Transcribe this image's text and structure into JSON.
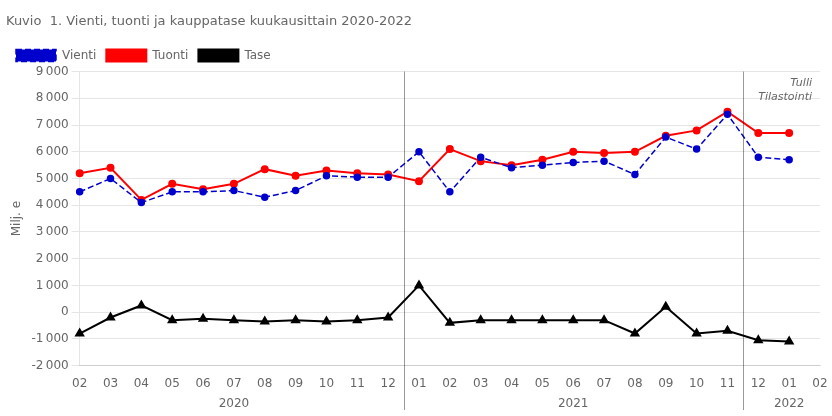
{
  "chart_data": {
    "type": "line",
    "title": "Kuvio  1. Vienti, tuonti ja kauppatase kuukausittain 2020-2022",
    "ylabel": "Milj. e",
    "categories": [
      "02",
      "03",
      "04",
      "05",
      "06",
      "07",
      "08",
      "09",
      "10",
      "11",
      "12",
      "01",
      "02",
      "03",
      "04",
      "05",
      "06",
      "07",
      "08",
      "09",
      "10",
      "11",
      "12",
      "01",
      "02"
    ],
    "category_groups": [
      {
        "label": "2020",
        "start": 0,
        "end": 10
      },
      {
        "label": "2021",
        "start": 11,
        "end": 21
      },
      {
        "label": "2022",
        "start": 22,
        "end": 24
      }
    ],
    "series": [
      {
        "name": "Vienti",
        "color": "#0000cc",
        "line_style": "dashed",
        "marker": "circle",
        "values": [
          4500,
          5000,
          4100,
          4500,
          4500,
          4550,
          4300,
          4550,
          5100,
          5050,
          5050,
          6000,
          4500,
          5800,
          5400,
          5500,
          5600,
          5650,
          5150,
          6550,
          6100,
          7400,
          5800,
          5700,
          null
        ]
      },
      {
        "name": "Tuonti",
        "color": "#ff0000",
        "line_style": "solid",
        "marker": "circle",
        "values": [
          5200,
          5400,
          4200,
          4800,
          4600,
          4800,
          5350,
          5100,
          5300,
          5200,
          5150,
          4900,
          6100,
          5650,
          5500,
          5700,
          6000,
          5950,
          6000,
          6600,
          6800,
          7500,
          6700,
          6700,
          null
        ]
      },
      {
        "name": "Tase",
        "color": "#000000",
        "line_style": "solid",
        "marker": "triangle",
        "values": [
          -800,
          -200,
          250,
          -300,
          -250,
          -300,
          -350,
          -300,
          -350,
          -300,
          -200,
          1000,
          -400,
          -300,
          -300,
          -300,
          -300,
          -300,
          -800,
          200,
          -800,
          -700,
          -1050,
          -1100,
          null
        ]
      }
    ],
    "ylim": [
      -2000,
      9000
    ],
    "yticks": [
      {
        "value": -2000,
        "label": "-2 000"
      },
      {
        "value": -1000,
        "label": "-1 000"
      },
      0,
      {
        "value": 1000,
        "label": "1 000"
      },
      {
        "value": 2000,
        "label": "2 000"
      },
      {
        "value": 3000,
        "label": "3 000"
      },
      {
        "value": 4000,
        "label": "4 000"
      },
      {
        "value": 5000,
        "label": "5 000"
      },
      {
        "value": 6000,
        "label": "6 000"
      },
      {
        "value": 7000,
        "label": "7 000"
      },
      {
        "value": 8000,
        "label": "8 000"
      },
      {
        "value": 9000,
        "label": "9 000"
      }
    ],
    "grid": "y",
    "legend": "upper left",
    "annotations": [
      "Tulli",
      "Tilastointi"
    ]
  }
}
